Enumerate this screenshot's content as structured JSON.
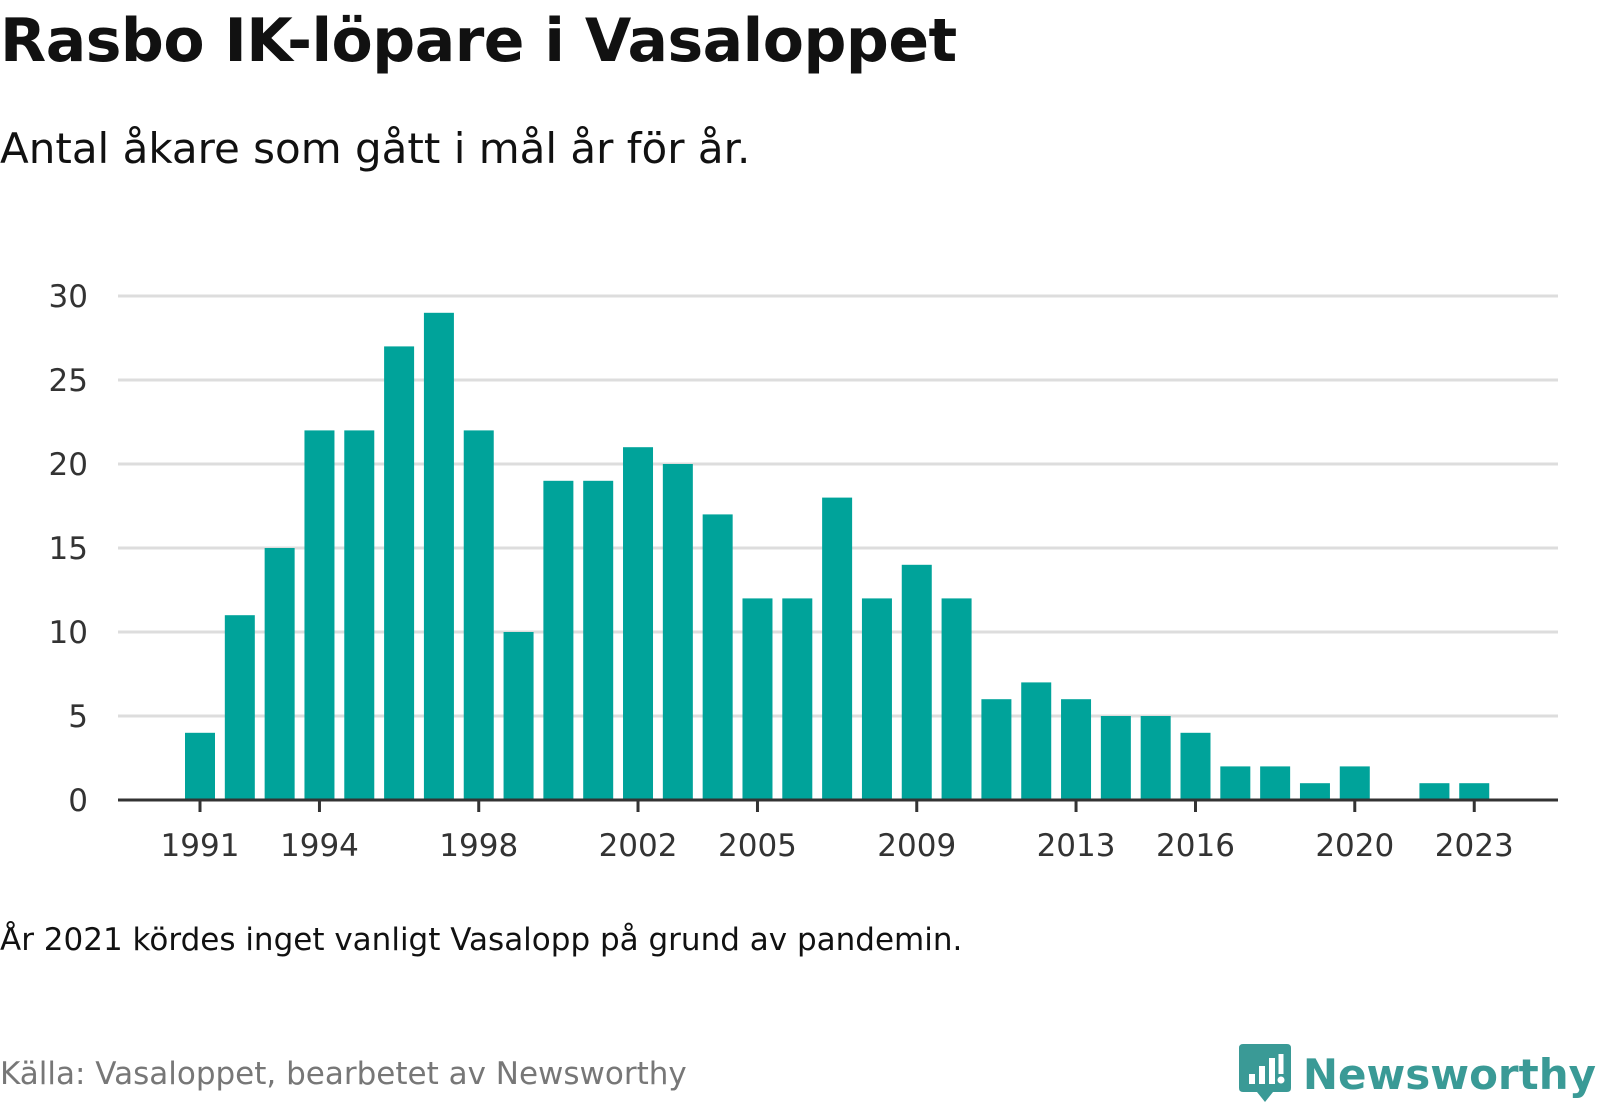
{
  "title": "Rasbo IK-löpare i Vasaloppet",
  "subtitle": "Antal åkare som gått i mål år för år.",
  "footnote": "År 2021 kördes inget vanligt Vasalopp på grund av pandemin.",
  "source": "Källa: Vasaloppet, bearbetet av Newsworthy",
  "brand": {
    "name": "Newsworthy",
    "icon": "newsworthy-logo-icon",
    "color": "#3a9a96"
  },
  "colors": {
    "bar": "#00a39a",
    "grid": "#dddddd",
    "axis": "#333333"
  },
  "chart_data": {
    "type": "bar",
    "categories": [
      1991,
      1992,
      1993,
      1994,
      1995,
      1996,
      1997,
      1998,
      1999,
      2000,
      2001,
      2002,
      2003,
      2004,
      2005,
      2006,
      2007,
      2008,
      2009,
      2010,
      2011,
      2012,
      2013,
      2014,
      2015,
      2016,
      2017,
      2018,
      2019,
      2020,
      2021,
      2022,
      2023
    ],
    "values": [
      4,
      11,
      15,
      22,
      22,
      27,
      29,
      22,
      10,
      19,
      19,
      21,
      20,
      17,
      12,
      12,
      18,
      12,
      14,
      12,
      6,
      7,
      6,
      5,
      5,
      4,
      2,
      2,
      1,
      2,
      0,
      1,
      1
    ],
    "xtick_labels": [
      1991,
      1994,
      1998,
      2002,
      2005,
      2009,
      2013,
      2016,
      2020,
      2023
    ],
    "yticks": [
      0,
      5,
      10,
      15,
      20,
      25,
      30
    ],
    "ylim": [
      0,
      30
    ],
    "xlabel": "",
    "ylabel": "",
    "grid": true,
    "legend": "none"
  }
}
